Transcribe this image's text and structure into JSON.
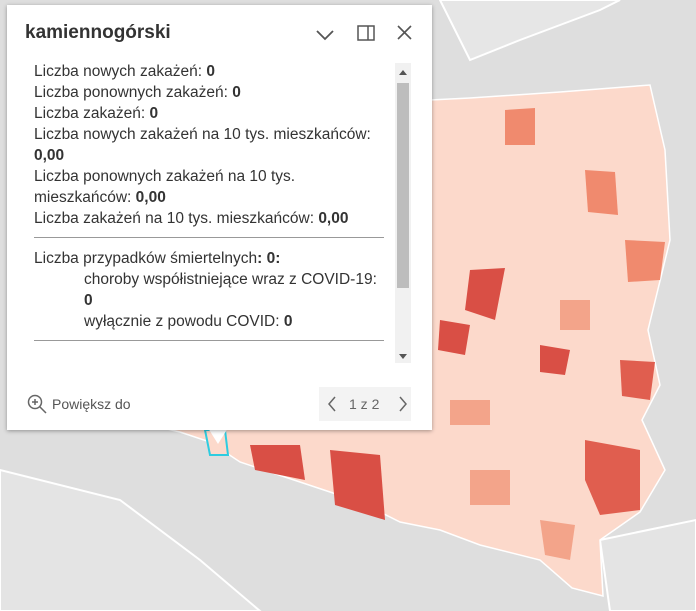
{
  "popup": {
    "title": "kamiennogórski",
    "fields": [
      {
        "label": "Liczba nowych zakażeń:",
        "value": "0"
      },
      {
        "label": "Liczba ponownych zakażeń:",
        "value": "0"
      },
      {
        "label": "Liczba zakażeń:",
        "value": "0"
      },
      {
        "label": "Liczba nowych zakażeń na 10 tys. mieszkańców:",
        "value": "0,00"
      },
      {
        "label": "Liczba ponownych zakażeń na 10 tys. mieszkańców:",
        "value": "0,00"
      },
      {
        "label": "Liczba zakażeń na 10 tys. mieszkańców:",
        "value": "0,00"
      }
    ],
    "deaths": {
      "label": "Liczba przypadków śmiertelnych",
      "value": ": 0:",
      "items": [
        {
          "label": "choroby współistniejące wraz z COVID-19:",
          "value": "0"
        },
        {
          "label": "wyłącznie z powodu COVID:",
          "value": "0"
        }
      ]
    },
    "zoom": "Powiększ do",
    "pager": "1 z 2"
  }
}
